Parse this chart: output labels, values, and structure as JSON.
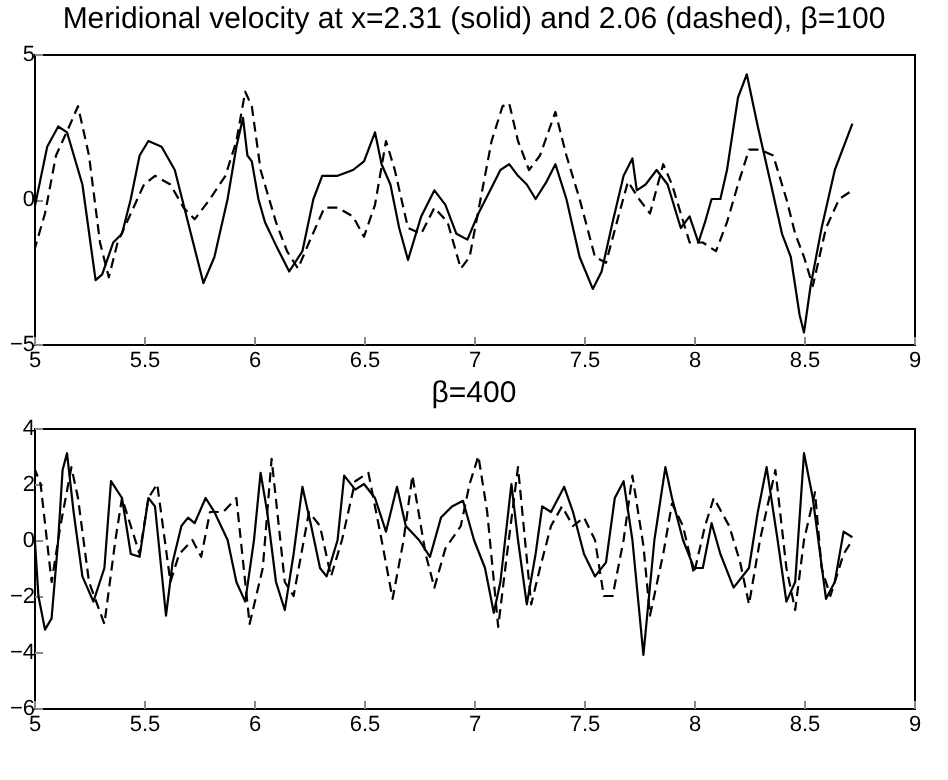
{
  "chart_data": [
    {
      "type": "line",
      "title": "Meridional velocity at x=2.31 (solid) and 2.06 (dashed), β=100",
      "xlim": [
        5,
        9
      ],
      "xticks": [
        5,
        5.5,
        6,
        6.5,
        7,
        7.5,
        8,
        8.5,
        9
      ],
      "ylim": [
        -5,
        5
      ],
      "yticks": [
        -5,
        0,
        5
      ],
      "series": [
        {
          "color": "#000000",
          "line_style": "solid",
          "x": [
            5.0,
            5.06,
            5.11,
            5.15,
            5.22,
            5.28,
            5.31,
            5.36,
            5.4,
            5.44,
            5.48,
            5.52,
            5.58,
            5.64,
            5.7,
            5.77,
            5.82,
            5.88,
            5.92,
            5.95,
            5.97,
            5.99,
            6.02,
            6.05,
            6.1,
            6.16,
            6.22,
            6.27,
            6.31,
            6.38,
            6.45,
            6.5,
            6.55,
            6.58,
            6.62,
            6.66,
            6.7,
            6.76,
            6.82,
            6.87,
            6.92,
            6.97,
            7.02,
            7.08,
            7.12,
            7.16,
            7.2,
            7.24,
            7.28,
            7.33,
            7.37,
            7.42,
            7.48,
            7.54,
            7.58,
            7.63,
            7.68,
            7.72,
            7.74,
            7.78,
            7.83,
            7.88,
            7.94,
            7.98,
            8.02,
            8.05,
            8.08,
            8.12,
            8.15,
            8.2,
            8.24,
            8.29,
            8.35,
            8.4,
            8.44,
            8.48,
            8.5,
            8.53,
            8.58,
            8.64,
            8.72
          ],
          "values": [
            -0.4,
            1.8,
            2.5,
            2.3,
            0.5,
            -2.8,
            -2.6,
            -1.5,
            -1.2,
            0.0,
            1.5,
            2.0,
            1.8,
            1.0,
            -0.8,
            -2.9,
            -2.0,
            0,
            1.8,
            2.8,
            1.5,
            1.3,
            0.0,
            -0.8,
            -1.6,
            -2.5,
            -1.8,
            0.0,
            0.8,
            0.8,
            1.0,
            1.3,
            2.3,
            1.2,
            0.5,
            -1.0,
            -2.1,
            -0.6,
            0.3,
            -0.2,
            -1.2,
            -1.4,
            -0.5,
            0.4,
            1.0,
            1.2,
            0.8,
            0.5,
            0.0,
            0.6,
            1.2,
            0.0,
            -2.0,
            -3.1,
            -2.5,
            -0.8,
            0.8,
            1.4,
            0.3,
            0.5,
            1.0,
            0.5,
            -1.0,
            -0.6,
            -1.5,
            -0.8,
            0.0,
            0.0,
            1.0,
            3.5,
            4.3,
            2.5,
            0.5,
            -1.2,
            -2.0,
            -4.0,
            -4.6,
            -3.0,
            -1.0,
            1.0,
            2.6
          ]
        },
        {
          "color": "#000000",
          "line_style": "dashed",
          "x": [
            5.0,
            5.05,
            5.1,
            5.16,
            5.2,
            5.25,
            5.3,
            5.34,
            5.38,
            5.44,
            5.5,
            5.55,
            5.62,
            5.68,
            5.73,
            5.8,
            5.87,
            5.92,
            5.96,
            5.99,
            6.03,
            6.1,
            6.15,
            6.2,
            6.25,
            6.32,
            6.38,
            6.45,
            6.5,
            6.55,
            6.6,
            6.64,
            6.7,
            6.76,
            6.82,
            6.88,
            6.94,
            6.98,
            7.03,
            7.08,
            7.13,
            7.16,
            7.2,
            7.25,
            7.3,
            7.37,
            7.42,
            7.48,
            7.55,
            7.6,
            7.66,
            7.7,
            7.75,
            7.8,
            7.86,
            7.9,
            7.98,
            8.04,
            8.1,
            8.15,
            8.2,
            8.25,
            8.3,
            8.36,
            8.42,
            8.46,
            8.5,
            8.54,
            8.6,
            8.66,
            8.72
          ],
          "values": [
            -1.8,
            -0.5,
            1.5,
            2.5,
            3.2,
            1.5,
            -1.5,
            -2.7,
            -1.5,
            -0.5,
            0.5,
            0.8,
            0.5,
            -0.3,
            -0.7,
            0.0,
            0.8,
            2.0,
            3.7,
            3.2,
            1.0,
            -0.8,
            -1.8,
            -2.4,
            -1.5,
            -0.3,
            -0.3,
            -0.6,
            -1.3,
            -0.2,
            2.0,
            1.0,
            -1.0,
            -1.2,
            -0.3,
            -0.8,
            -2.4,
            -2.0,
            0.0,
            2.0,
            3.2,
            3.3,
            2.0,
            1.0,
            1.5,
            3.0,
            1.5,
            0.0,
            -2.0,
            -2.2,
            -0.5,
            0.6,
            0.0,
            -0.5,
            1.2,
            0.5,
            -1.5,
            -1.5,
            -1.8,
            -0.8,
            0.5,
            1.7,
            1.7,
            1.5,
            0.0,
            -1.2,
            -2.0,
            -3.0,
            -1.0,
            0.0,
            0.3
          ]
        }
      ]
    },
    {
      "type": "line",
      "title": "β=400",
      "xlim": [
        5,
        9
      ],
      "xticks": [
        5,
        5.5,
        6,
        6.5,
        7,
        7.5,
        8,
        8.5,
        9
      ],
      "ylim": [
        -6,
        4
      ],
      "yticks": [
        -6,
        -4,
        -2,
        0,
        2,
        4
      ],
      "series": [
        {
          "color": "#000000",
          "line_style": "solid",
          "x": [
            5.0,
            5.02,
            5.05,
            5.08,
            5.11,
            5.13,
            5.15,
            5.18,
            5.22,
            5.27,
            5.32,
            5.35,
            5.4,
            5.44,
            5.48,
            5.52,
            5.55,
            5.6,
            5.63,
            5.67,
            5.7,
            5.73,
            5.78,
            5.82,
            5.88,
            5.92,
            5.96,
            6.0,
            6.03,
            6.06,
            6.1,
            6.14,
            6.18,
            6.22,
            6.26,
            6.3,
            6.33,
            6.38,
            6.41,
            6.46,
            6.5,
            6.55,
            6.6,
            6.65,
            6.69,
            6.75,
            6.8,
            6.85,
            6.9,
            6.95,
            7.0,
            7.05,
            7.09,
            7.12,
            7.17,
            7.2,
            7.24,
            7.28,
            7.31,
            7.35,
            7.41,
            7.45,
            7.5,
            7.55,
            7.6,
            7.64,
            7.68,
            7.72,
            7.77,
            7.82,
            7.87,
            7.9,
            7.95,
            8.0,
            8.04,
            8.08,
            8.12,
            8.18,
            8.25,
            8.29,
            8.33,
            8.38,
            8.42,
            8.46,
            8.5,
            8.54,
            8.6,
            8.64,
            8.68,
            8.72
          ],
          "values": [
            0.5,
            -2.0,
            -3.2,
            -2.8,
            0.0,
            2.5,
            3.1,
            1.0,
            -1.3,
            -2.2,
            -1.0,
            2.1,
            1.5,
            -0.5,
            -0.6,
            1.5,
            1.2,
            -2.7,
            -0.8,
            0.5,
            0.8,
            0.6,
            1.5,
            1.0,
            0.0,
            -1.5,
            -2.2,
            0.0,
            2.4,
            1.0,
            -1.5,
            -2.5,
            -0.5,
            1.9,
            0.5,
            -1.0,
            -1.3,
            0.0,
            2.3,
            1.8,
            2.0,
            1.5,
            0.3,
            1.9,
            0.5,
            0.0,
            -0.6,
            0.8,
            1.2,
            1.4,
            0.0,
            -1.0,
            -2.6,
            -1.5,
            2.0,
            0.0,
            -2.3,
            -0.5,
            1.2,
            1.0,
            1.9,
            1.0,
            -0.5,
            -1.3,
            -0.8,
            1.5,
            2.1,
            0.0,
            -4.1,
            0.0,
            2.6,
            1.5,
            0.0,
            -1.0,
            -1.0,
            0.6,
            -0.5,
            -1.7,
            -1.0,
            1.0,
            2.6,
            0.0,
            -2.2,
            -1.5,
            3.1,
            1.5,
            -2.1,
            -1.5,
            0.3,
            0.1
          ]
        },
        {
          "color": "#000000",
          "line_style": "dashed",
          "x": [
            5.0,
            5.03,
            5.08,
            5.12,
            5.17,
            5.2,
            5.25,
            5.32,
            5.37,
            5.4,
            5.44,
            5.48,
            5.52,
            5.56,
            5.62,
            5.66,
            5.72,
            5.76,
            5.8,
            5.86,
            5.92,
            5.98,
            6.04,
            6.08,
            6.14,
            6.18,
            6.25,
            6.3,
            6.35,
            6.4,
            6.46,
            6.52,
            6.58,
            6.63,
            6.68,
            6.72,
            6.78,
            6.82,
            6.87,
            6.94,
            6.98,
            7.02,
            7.06,
            7.11,
            7.15,
            7.2,
            7.26,
            7.3,
            7.35,
            7.4,
            7.45,
            7.5,
            7.55,
            7.59,
            7.63,
            7.68,
            7.72,
            7.77,
            7.8,
            7.86,
            7.9,
            7.95,
            8.0,
            8.05,
            8.09,
            8.16,
            8.21,
            8.25,
            8.3,
            8.37,
            8.42,
            8.46,
            8.5,
            8.55,
            8.58,
            8.62,
            8.68,
            8.72
          ],
          "values": [
            2.6,
            2.0,
            -1.5,
            0.5,
            2.6,
            1.5,
            -1.5,
            -3.0,
            0.0,
            1.5,
            0.5,
            -0.5,
            1.5,
            2.0,
            -1.5,
            -0.5,
            0.0,
            -0.6,
            1.0,
            1.0,
            1.5,
            -3.0,
            -1.0,
            2.9,
            -1.5,
            -2.0,
            1.0,
            0.5,
            -1.3,
            0.0,
            2.1,
            2.4,
            0.0,
            -2.1,
            0.0,
            2.3,
            -0.5,
            -1.7,
            -0.3,
            0.5,
            2.0,
            3.0,
            1.0,
            -3.1,
            -0.5,
            2.6,
            -2.3,
            -1.0,
            0.5,
            1.2,
            0.5,
            0.8,
            0.0,
            -2.0,
            -2.0,
            0.0,
            2.3,
            -0.2,
            -2.7,
            -0.5,
            1.3,
            0.5,
            -1.2,
            0.5,
            1.5,
            0.5,
            -0.8,
            -2.3,
            0.0,
            2.5,
            -1.0,
            -2.5,
            0.0,
            1.7,
            -1.0,
            -2.0,
            -0.5,
            0.0
          ]
        }
      ]
    }
  ]
}
